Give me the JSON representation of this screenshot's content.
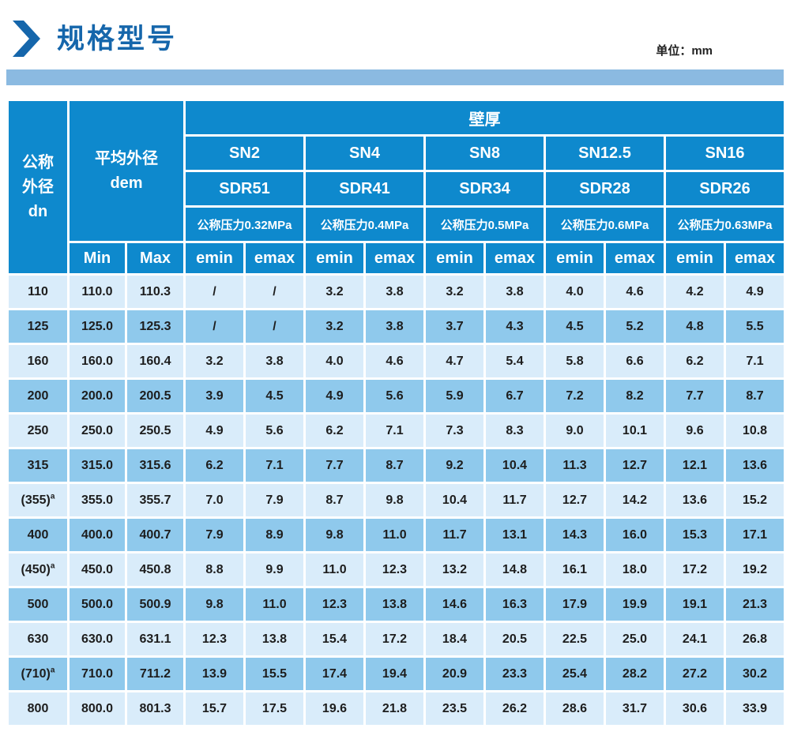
{
  "page": {
    "title": "规格型号",
    "unit_label": "单位：mm",
    "title_icon": "chevron-right"
  },
  "colors": {
    "header_blue": "#0e89cd",
    "title_blue": "#1566ab",
    "bar_blue": "#8bbae1",
    "row_light": "#d9ecfa",
    "row_medium": "#8fc9ec",
    "cell_text": "#1d1d1d"
  },
  "table": {
    "header": {
      "dn_lines": [
        "公称",
        "外径",
        "dn"
      ],
      "dem_lines": [
        "平均外径",
        "dem"
      ],
      "wall_thickness": "壁厚",
      "sn_labels": [
        "SN2",
        "SN4",
        "SN8",
        "SN12.5",
        "SN16"
      ],
      "sdr_labels": [
        "SDR51",
        "SDR41",
        "SDR34",
        "SDR28",
        "SDR26"
      ],
      "pressure_labels": [
        "公称压力0.32MPa",
        "公称压力0.4MPa",
        "公称压力0.5MPa",
        "公称压力0.6MPa",
        "公称压力0.63MPa"
      ],
      "min_label": "Min",
      "max_label": "Max",
      "emin_label": "emin",
      "emax_label": "emax"
    },
    "rows": [
      {
        "dn": "110",
        "dn_sup": "",
        "min": "110.0",
        "max": "110.3",
        "values": [
          "/",
          "/",
          "3.2",
          "3.8",
          "3.2",
          "3.8",
          "4.0",
          "4.6",
          "4.2",
          "4.9"
        ]
      },
      {
        "dn": "125",
        "dn_sup": "",
        "min": "125.0",
        "max": "125.3",
        "values": [
          "/",
          "/",
          "3.2",
          "3.8",
          "3.7",
          "4.3",
          "4.5",
          "5.2",
          "4.8",
          "5.5"
        ]
      },
      {
        "dn": "160",
        "dn_sup": "",
        "min": "160.0",
        "max": "160.4",
        "values": [
          "3.2",
          "3.8",
          "4.0",
          "4.6",
          "4.7",
          "5.4",
          "5.8",
          "6.6",
          "6.2",
          "7.1"
        ]
      },
      {
        "dn": "200",
        "dn_sup": "",
        "min": "200.0",
        "max": "200.5",
        "values": [
          "3.9",
          "4.5",
          "4.9",
          "5.6",
          "5.9",
          "6.7",
          "7.2",
          "8.2",
          "7.7",
          "8.7"
        ]
      },
      {
        "dn": "250",
        "dn_sup": "",
        "min": "250.0",
        "max": "250.5",
        "values": [
          "4.9",
          "5.6",
          "6.2",
          "7.1",
          "7.3",
          "8.3",
          "9.0",
          "10.1",
          "9.6",
          "10.8"
        ]
      },
      {
        "dn": "315",
        "dn_sup": "",
        "min": "315.0",
        "max": "315.6",
        "values": [
          "6.2",
          "7.1",
          "7.7",
          "8.7",
          "9.2",
          "10.4",
          "11.3",
          "12.7",
          "12.1",
          "13.6"
        ]
      },
      {
        "dn": "(355)",
        "dn_sup": "a",
        "min": "355.0",
        "max": "355.7",
        "values": [
          "7.0",
          "7.9",
          "8.7",
          "9.8",
          "10.4",
          "11.7",
          "12.7",
          "14.2",
          "13.6",
          "15.2"
        ]
      },
      {
        "dn": "400",
        "dn_sup": "",
        "min": "400.0",
        "max": "400.7",
        "values": [
          "7.9",
          "8.9",
          "9.8",
          "11.0",
          "11.7",
          "13.1",
          "14.3",
          "16.0",
          "15.3",
          "17.1"
        ]
      },
      {
        "dn": "(450)",
        "dn_sup": "a",
        "min": "450.0",
        "max": "450.8",
        "values": [
          "8.8",
          "9.9",
          "11.0",
          "12.3",
          "13.2",
          "14.8",
          "16.1",
          "18.0",
          "17.2",
          "19.2"
        ]
      },
      {
        "dn": "500",
        "dn_sup": "",
        "min": "500.0",
        "max": "500.9",
        "values": [
          "9.8",
          "11.0",
          "12.3",
          "13.8",
          "14.6",
          "16.3",
          "17.9",
          "19.9",
          "19.1",
          "21.3"
        ]
      },
      {
        "dn": "630",
        "dn_sup": "",
        "min": "630.0",
        "max": "631.1",
        "values": [
          "12.3",
          "13.8",
          "15.4",
          "17.2",
          "18.4",
          "20.5",
          "22.5",
          "25.0",
          "24.1",
          "26.8"
        ]
      },
      {
        "dn": "(710)",
        "dn_sup": "a",
        "min": "710.0",
        "max": "711.2",
        "values": [
          "13.9",
          "15.5",
          "17.4",
          "19.4",
          "20.9",
          "23.3",
          "25.4",
          "28.2",
          "27.2",
          "30.2"
        ]
      },
      {
        "dn": "800",
        "dn_sup": "",
        "min": "800.0",
        "max": "801.3",
        "values": [
          "15.7",
          "17.5",
          "19.6",
          "21.8",
          "23.5",
          "26.2",
          "28.6",
          "31.7",
          "30.6",
          "33.9"
        ]
      }
    ]
  }
}
